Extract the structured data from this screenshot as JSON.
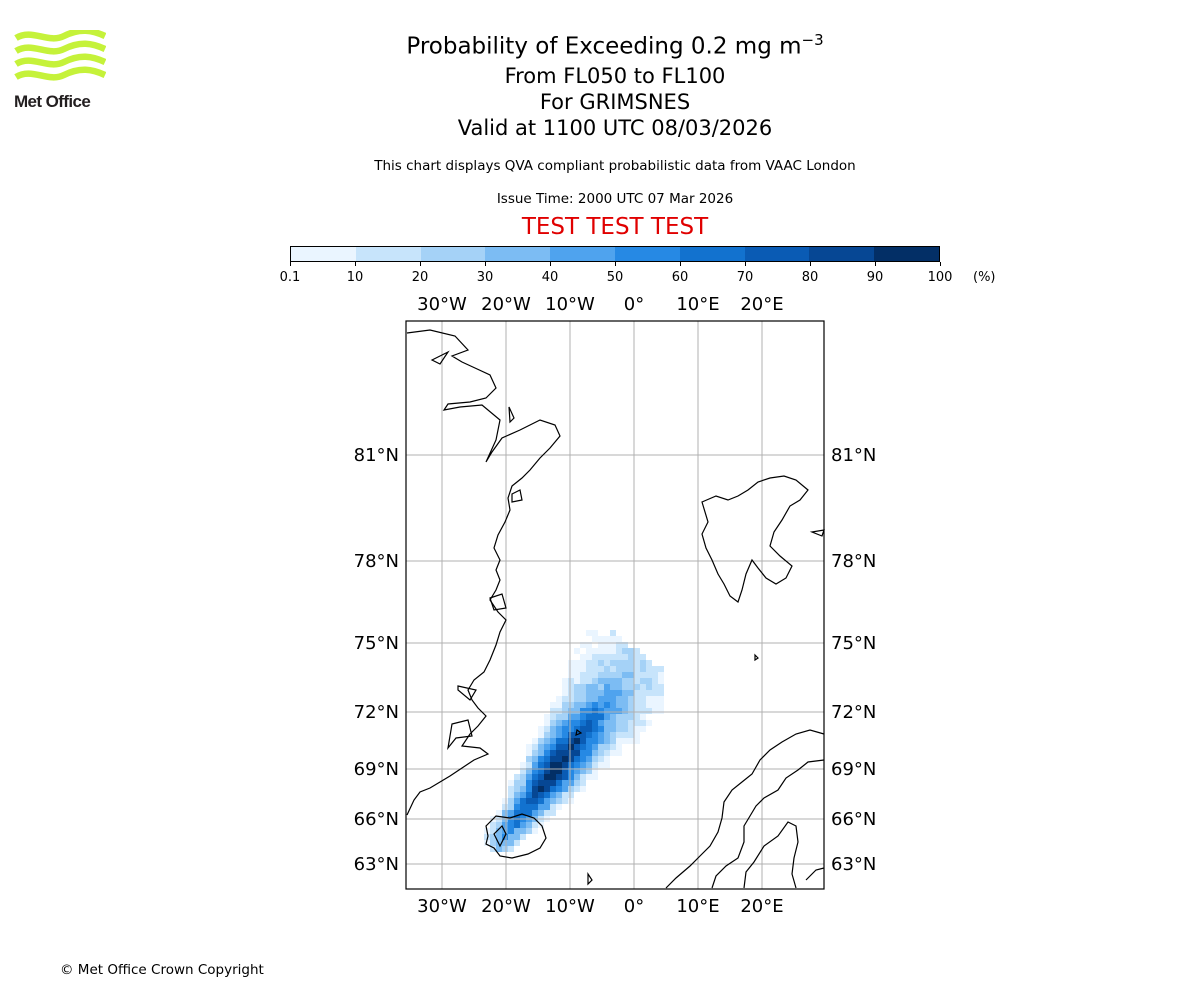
{
  "logo": {
    "text": "Met Office",
    "color": "#c5f23a"
  },
  "title": {
    "line1_main": "Probability of Exceeding 0.2 mg m",
    "line1_sup": "−3",
    "line2": "From FL050 to FL100",
    "line3": "For GRIMSNES",
    "line4": "Valid at 1100 UTC 08/03/2026"
  },
  "subtitle": "This chart displays QVA compliant probabilistic data from VAAC London",
  "issue_time": "Issue Time: 2000 UTC 07 Mar 2026",
  "test_banner": "TEST TEST TEST",
  "colorbar": {
    "ticks": [
      "0.1",
      "10",
      "20",
      "30",
      "40",
      "50",
      "60",
      "70",
      "80",
      "90",
      "100"
    ],
    "unit": "(%)",
    "colors": [
      "#eaf5ff",
      "#c7e4fb",
      "#a5d2f7",
      "#7cbcf3",
      "#4fa3ee",
      "#2689e4",
      "#1272cf",
      "#0a5bb4",
      "#064794",
      "#032f66"
    ]
  },
  "map": {
    "lon_labels": [
      "30°W",
      "20°W",
      "10°W",
      "0°",
      "10°E",
      "20°E"
    ],
    "lat_labels": [
      "81°N",
      "78°N",
      "75°N",
      "72°N",
      "69°N",
      "66°N",
      "63°N"
    ]
  },
  "copyright": "© Met Office Crown Copyright"
}
